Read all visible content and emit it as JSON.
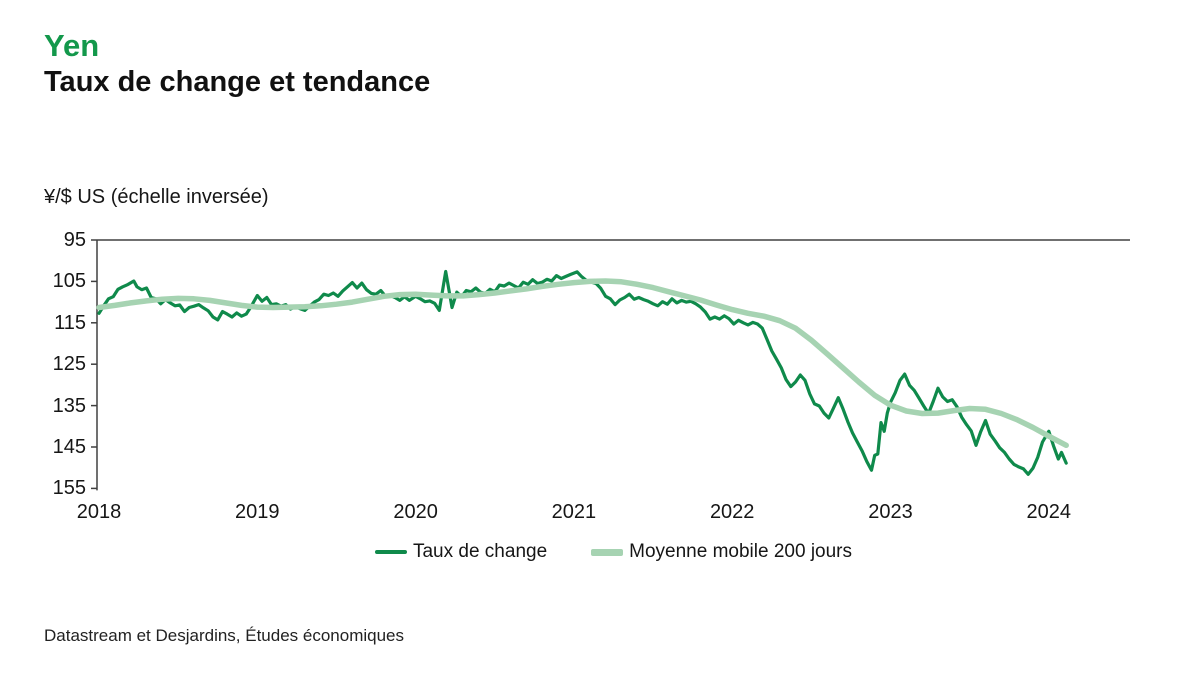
{
  "header": {
    "title": "Yen",
    "subtitle": "Taux de change et tendance"
  },
  "chart": {
    "unit_label": "¥/$ US (échelle inversée)"
  },
  "footer": {
    "source": "Datastream et Desjardins, Études économiques"
  },
  "colors": {
    "title_green": "#13984b",
    "exchange_line": "#0f8a4b",
    "ma_line": "#a6d3b2",
    "axis": "#404040",
    "text": "#1a1a1a"
  },
  "chart_data": {
    "type": "line",
    "title": "Yen — Taux de change et tendance",
    "ylabel": "¥/$ US (échelle inversée)",
    "xlabel": "",
    "grid": false,
    "legend_position": "bottom",
    "y_axis": {
      "inverted": true,
      "min": 95,
      "max": 155,
      "ticks": [
        95,
        105,
        115,
        125,
        135,
        145,
        155
      ]
    },
    "x_axis": {
      "min": 2018,
      "max": 2024.5,
      "ticks": [
        2018,
        2019,
        2020,
        2021,
        2022,
        2023,
        2024
      ]
    },
    "series": [
      {
        "name": "Taux de change",
        "color": "#0f8a4b",
        "width": 3.2,
        "points": [
          [
            2018.0,
            112.7
          ],
          [
            2018.03,
            110.9
          ],
          [
            2018.06,
            109.2
          ],
          [
            2018.09,
            108.7
          ],
          [
            2018.12,
            106.9
          ],
          [
            2018.15,
            106.3
          ],
          [
            2018.18,
            105.8
          ],
          [
            2018.22,
            104.9
          ],
          [
            2018.24,
            106.3
          ],
          [
            2018.27,
            107.0
          ],
          [
            2018.3,
            106.6
          ],
          [
            2018.33,
            108.9
          ],
          [
            2018.36,
            109.2
          ],
          [
            2018.39,
            110.4
          ],
          [
            2018.42,
            109.4
          ],
          [
            2018.45,
            110.2
          ],
          [
            2018.48,
            110.9
          ],
          [
            2018.51,
            110.7
          ],
          [
            2018.54,
            112.3
          ],
          [
            2018.57,
            111.3
          ],
          [
            2018.6,
            111.0
          ],
          [
            2018.63,
            110.6
          ],
          [
            2018.66,
            111.4
          ],
          [
            2018.69,
            112.1
          ],
          [
            2018.72,
            113.6
          ],
          [
            2018.75,
            114.3
          ],
          [
            2018.78,
            112.3
          ],
          [
            2018.81,
            112.9
          ],
          [
            2018.84,
            113.6
          ],
          [
            2018.87,
            112.6
          ],
          [
            2018.9,
            113.4
          ],
          [
            2018.93,
            112.9
          ],
          [
            2018.96,
            111.1
          ],
          [
            2019.0,
            108.4
          ],
          [
            2019.03,
            109.8
          ],
          [
            2019.06,
            108.9
          ],
          [
            2019.09,
            110.6
          ],
          [
            2019.12,
            110.4
          ],
          [
            2019.15,
            111.0
          ],
          [
            2019.18,
            110.6
          ],
          [
            2019.21,
            111.7
          ],
          [
            2019.24,
            111.1
          ],
          [
            2019.27,
            111.6
          ],
          [
            2019.3,
            112.0
          ],
          [
            2019.33,
            111.0
          ],
          [
            2019.36,
            110.0
          ],
          [
            2019.39,
            109.4
          ],
          [
            2019.42,
            108.1
          ],
          [
            2019.45,
            108.4
          ],
          [
            2019.48,
            107.8
          ],
          [
            2019.51,
            108.6
          ],
          [
            2019.54,
            107.3
          ],
          [
            2019.57,
            106.3
          ],
          [
            2019.6,
            105.3
          ],
          [
            2019.63,
            106.6
          ],
          [
            2019.66,
            105.4
          ],
          [
            2019.69,
            107.0
          ],
          [
            2019.72,
            107.9
          ],
          [
            2019.75,
            108.1
          ],
          [
            2019.78,
            107.2
          ],
          [
            2019.81,
            108.6
          ],
          [
            2019.84,
            108.4
          ],
          [
            2019.87,
            108.9
          ],
          [
            2019.9,
            109.6
          ],
          [
            2019.93,
            108.7
          ],
          [
            2019.96,
            109.6
          ],
          [
            2020.0,
            108.6
          ],
          [
            2020.03,
            109.2
          ],
          [
            2020.06,
            109.9
          ],
          [
            2020.09,
            109.7
          ],
          [
            2020.12,
            110.3
          ],
          [
            2020.15,
            112.0
          ],
          [
            2020.19,
            102.6
          ],
          [
            2020.23,
            111.3
          ],
          [
            2020.26,
            107.6
          ],
          [
            2020.29,
            108.7
          ],
          [
            2020.32,
            107.2
          ],
          [
            2020.35,
            107.5
          ],
          [
            2020.38,
            106.6
          ],
          [
            2020.41,
            107.6
          ],
          [
            2020.44,
            107.9
          ],
          [
            2020.47,
            106.9
          ],
          [
            2020.5,
            107.5
          ],
          [
            2020.53,
            105.9
          ],
          [
            2020.56,
            106.1
          ],
          [
            2020.59,
            105.4
          ],
          [
            2020.62,
            106.0
          ],
          [
            2020.65,
            106.6
          ],
          [
            2020.68,
            105.2
          ],
          [
            2020.71,
            105.7
          ],
          [
            2020.74,
            104.6
          ],
          [
            2020.77,
            105.5
          ],
          [
            2020.8,
            105.2
          ],
          [
            2020.83,
            104.5
          ],
          [
            2020.86,
            104.9
          ],
          [
            2020.89,
            103.6
          ],
          [
            2020.92,
            104.3
          ],
          [
            2020.95,
            103.8
          ],
          [
            2020.98,
            103.3
          ],
          [
            2021.02,
            102.7
          ],
          [
            2021.05,
            103.9
          ],
          [
            2021.08,
            104.8
          ],
          [
            2021.11,
            105.2
          ],
          [
            2021.14,
            105.5
          ],
          [
            2021.17,
            106.7
          ],
          [
            2021.2,
            108.6
          ],
          [
            2021.23,
            109.2
          ],
          [
            2021.26,
            110.6
          ],
          [
            2021.29,
            109.5
          ],
          [
            2021.32,
            108.9
          ],
          [
            2021.35,
            108.1
          ],
          [
            2021.38,
            109.3
          ],
          [
            2021.41,
            108.9
          ],
          [
            2021.44,
            109.4
          ],
          [
            2021.47,
            109.8
          ],
          [
            2021.5,
            110.4
          ],
          [
            2021.53,
            110.9
          ],
          [
            2021.56,
            109.9
          ],
          [
            2021.59,
            110.5
          ],
          [
            2021.62,
            109.2
          ],
          [
            2021.65,
            110.2
          ],
          [
            2021.68,
            109.6
          ],
          [
            2021.71,
            110.0
          ],
          [
            2021.74,
            109.8
          ],
          [
            2021.77,
            110.4
          ],
          [
            2021.8,
            111.2
          ],
          [
            2021.83,
            112.4
          ],
          [
            2021.86,
            114.1
          ],
          [
            2021.89,
            113.6
          ],
          [
            2021.92,
            114.1
          ],
          [
            2021.95,
            113.3
          ],
          [
            2021.98,
            114.0
          ],
          [
            2022.01,
            115.3
          ],
          [
            2022.04,
            114.4
          ],
          [
            2022.07,
            115.0
          ],
          [
            2022.1,
            115.5
          ],
          [
            2022.13,
            114.9
          ],
          [
            2022.16,
            115.3
          ],
          [
            2022.19,
            116.3
          ],
          [
            2022.22,
            119.0
          ],
          [
            2022.25,
            121.8
          ],
          [
            2022.28,
            123.8
          ],
          [
            2022.31,
            125.9
          ],
          [
            2022.34,
            128.7
          ],
          [
            2022.37,
            130.4
          ],
          [
            2022.4,
            129.3
          ],
          [
            2022.43,
            127.6
          ],
          [
            2022.46,
            128.9
          ],
          [
            2022.49,
            132.2
          ],
          [
            2022.52,
            134.6
          ],
          [
            2022.55,
            135.1
          ],
          [
            2022.58,
            136.8
          ],
          [
            2022.61,
            138.0
          ],
          [
            2022.64,
            135.6
          ],
          [
            2022.67,
            133.1
          ],
          [
            2022.7,
            135.8
          ],
          [
            2022.73,
            138.9
          ],
          [
            2022.76,
            141.6
          ],
          [
            2022.79,
            143.8
          ],
          [
            2022.82,
            145.9
          ],
          [
            2022.85,
            148.5
          ],
          [
            2022.88,
            150.6
          ],
          [
            2022.9,
            147.0
          ],
          [
            2022.92,
            146.7
          ],
          [
            2022.94,
            139.1
          ],
          [
            2022.96,
            141.2
          ],
          [
            2022.98,
            136.8
          ],
          [
            2023.0,
            134.2
          ],
          [
            2023.03,
            131.9
          ],
          [
            2023.06,
            128.9
          ],
          [
            2023.09,
            127.4
          ],
          [
            2023.12,
            130.1
          ],
          [
            2023.15,
            131.3
          ],
          [
            2023.18,
            133.2
          ],
          [
            2023.21,
            135.1
          ],
          [
            2023.24,
            136.9
          ],
          [
            2023.27,
            134.0
          ],
          [
            2023.3,
            130.8
          ],
          [
            2023.33,
            132.9
          ],
          [
            2023.36,
            134.0
          ],
          [
            2023.39,
            133.6
          ],
          [
            2023.42,
            135.3
          ],
          [
            2023.45,
            137.8
          ],
          [
            2023.48,
            139.6
          ],
          [
            2023.51,
            141.1
          ],
          [
            2023.54,
            144.6
          ],
          [
            2023.57,
            141.3
          ],
          [
            2023.6,
            138.6
          ],
          [
            2023.63,
            141.9
          ],
          [
            2023.66,
            143.5
          ],
          [
            2023.69,
            145.2
          ],
          [
            2023.72,
            146.3
          ],
          [
            2023.75,
            147.9
          ],
          [
            2023.78,
            149.2
          ],
          [
            2023.81,
            149.8
          ],
          [
            2023.84,
            150.3
          ],
          [
            2023.87,
            151.6
          ],
          [
            2023.9,
            150.1
          ],
          [
            2023.93,
            147.5
          ],
          [
            2023.96,
            143.8
          ],
          [
            2024.0,
            141.2
          ],
          [
            2024.03,
            144.7
          ],
          [
            2024.06,
            147.9
          ],
          [
            2024.08,
            146.3
          ],
          [
            2024.11,
            148.9
          ]
        ]
      },
      {
        "name": "Moyenne mobile 200 jours",
        "color": "#a6d3b2",
        "width": 5.5,
        "points": [
          [
            2018.0,
            111.3
          ],
          [
            2018.1,
            110.8
          ],
          [
            2018.2,
            110.2
          ],
          [
            2018.3,
            109.7
          ],
          [
            2018.4,
            109.3
          ],
          [
            2018.5,
            109.1
          ],
          [
            2018.6,
            109.2
          ],
          [
            2018.7,
            109.6
          ],
          [
            2018.8,
            110.2
          ],
          [
            2018.9,
            110.8
          ],
          [
            2019.0,
            111.2
          ],
          [
            2019.1,
            111.3
          ],
          [
            2019.2,
            111.2
          ],
          [
            2019.3,
            111.1
          ],
          [
            2019.4,
            110.9
          ],
          [
            2019.5,
            110.5
          ],
          [
            2019.6,
            110.0
          ],
          [
            2019.7,
            109.3
          ],
          [
            2019.8,
            108.6
          ],
          [
            2019.9,
            108.2
          ],
          [
            2020.0,
            108.1
          ],
          [
            2020.1,
            108.3
          ],
          [
            2020.2,
            108.5
          ],
          [
            2020.3,
            108.5
          ],
          [
            2020.4,
            108.2
          ],
          [
            2020.5,
            107.8
          ],
          [
            2020.6,
            107.3
          ],
          [
            2020.7,
            106.8
          ],
          [
            2020.8,
            106.2
          ],
          [
            2020.9,
            105.7
          ],
          [
            2021.0,
            105.3
          ],
          [
            2021.1,
            105.0
          ],
          [
            2021.2,
            104.9
          ],
          [
            2021.3,
            105.1
          ],
          [
            2021.4,
            105.7
          ],
          [
            2021.5,
            106.5
          ],
          [
            2021.6,
            107.5
          ],
          [
            2021.7,
            108.5
          ],
          [
            2021.8,
            109.5
          ],
          [
            2021.9,
            110.7
          ],
          [
            2022.0,
            111.8
          ],
          [
            2022.1,
            112.7
          ],
          [
            2022.2,
            113.4
          ],
          [
            2022.3,
            114.5
          ],
          [
            2022.4,
            116.3
          ],
          [
            2022.5,
            119.2
          ],
          [
            2022.6,
            122.5
          ],
          [
            2022.7,
            125.9
          ],
          [
            2022.8,
            129.3
          ],
          [
            2022.9,
            132.5
          ],
          [
            2023.0,
            134.9
          ],
          [
            2023.1,
            136.3
          ],
          [
            2023.2,
            136.9
          ],
          [
            2023.3,
            136.8
          ],
          [
            2023.4,
            136.2
          ],
          [
            2023.5,
            135.7
          ],
          [
            2023.6,
            135.9
          ],
          [
            2023.7,
            136.9
          ],
          [
            2023.8,
            138.4
          ],
          [
            2023.9,
            140.3
          ],
          [
            2024.0,
            142.4
          ],
          [
            2024.11,
            144.6
          ]
        ]
      }
    ]
  }
}
